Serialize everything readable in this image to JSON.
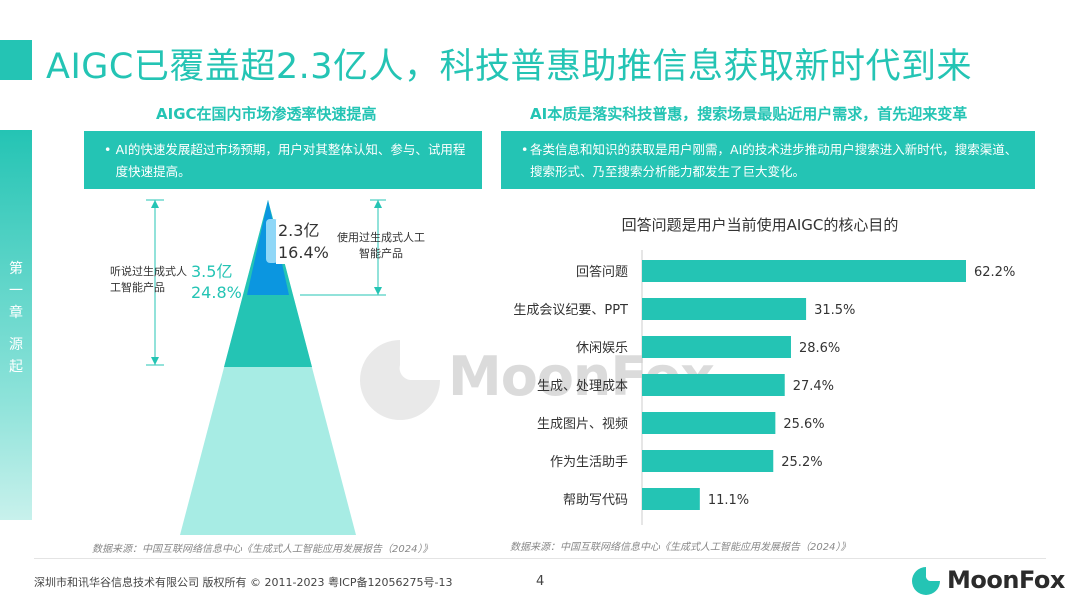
{
  "title": "AIGC已覆盖超2.3亿人，科技普惠助推信息获取新时代到来",
  "side_tab": "第一章 源起",
  "left_panel": {
    "subtitle": "AIGC在国内市场渗透率快速提高",
    "bullet": "AI的快速发展超过市场预期，用户对其整体认知、参与、试用程度快速提高。",
    "source": "数据来源：中国互联网络信息中心《生成式人工智能应用发展报告（2024）》"
  },
  "right_panel": {
    "subtitle": "AI本质是落实科技普惠，搜索场景最贴近用户需求，首先迎来变革",
    "bullet": "各类信息和知识的获取是用户刚需，AI的技术进步推动用户搜索进入新时代，搜索渠道、搜索形式、乃至搜索分析能力都发生了巨大变化。",
    "source": "数据来源：中国互联网络信息中心《生成式人工智能应用发展报告（2024）》"
  },
  "chart_data": [
    {
      "type": "pyramid",
      "levels": [
        {
          "label": "使用过生成式人工智能产品",
          "users": "2.3亿",
          "rate": "16.4%",
          "color": "#0b96e0"
        },
        {
          "label": "听说过生成式人工智能产品",
          "users": "3.5亿",
          "rate": "24.8%",
          "color": "#24c4b4"
        }
      ],
      "base_color": "#a7ece4"
    },
    {
      "type": "bar",
      "orientation": "horizontal",
      "title": "回答问题是用户当前使用AIGC的核心目的",
      "categories": [
        "回答问题",
        "生成会议纪要、PPT",
        "休闲娱乐",
        "生成、处理成本",
        "生成图片、视频",
        "作为生活助手",
        "帮助写代码"
      ],
      "values": [
        62.2,
        31.5,
        28.6,
        27.4,
        25.6,
        25.2,
        11.1
      ],
      "value_suffix": "%",
      "xlim": [
        0,
        62.2
      ],
      "color": "#24c4b4"
    }
  ],
  "footer": {
    "copyright": "深圳市和讯华谷信息技术有限公司 版权所有 © 2011-2023 粤ICP备12056275号-13",
    "page": "4",
    "logo": "MoonFox"
  },
  "watermark": "MoonFox"
}
